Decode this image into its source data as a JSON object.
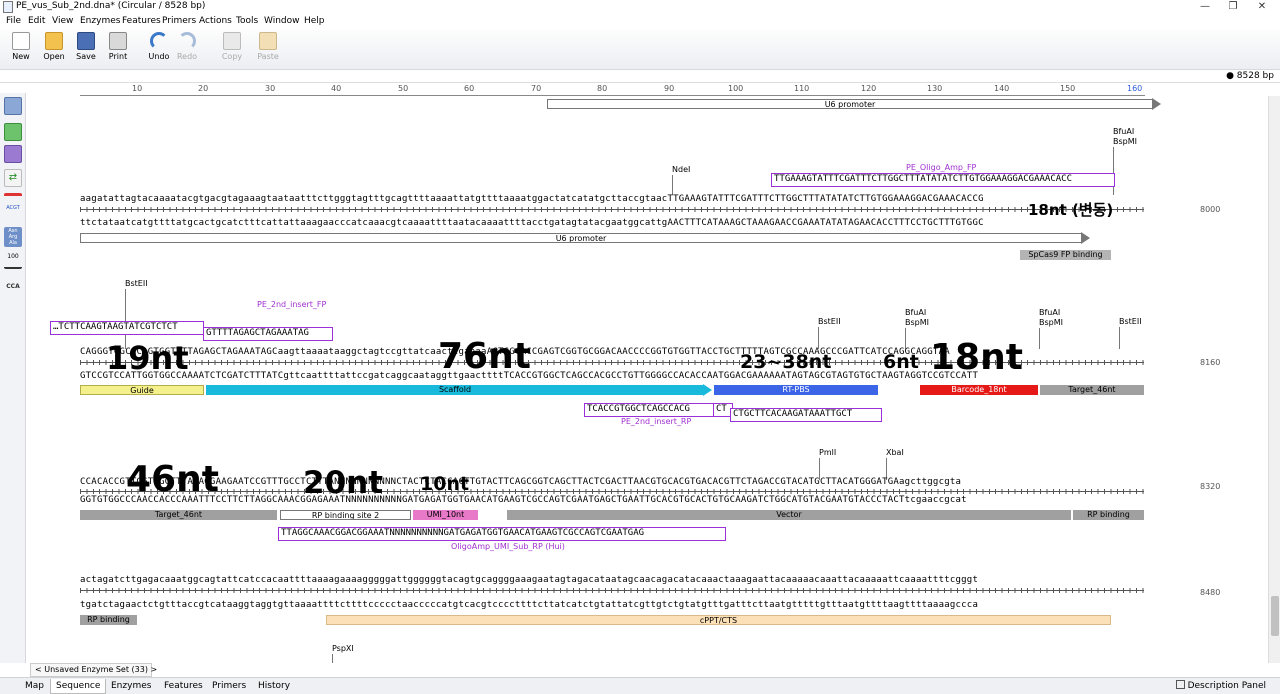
{
  "window": {
    "title": "PE_vus_Sub_2nd.dna*  (Circular / 8528 bp)",
    "minimize": "—",
    "restore": "❐",
    "close": "✕"
  },
  "menu": [
    "File",
    "Edit",
    "View",
    "Enzymes",
    "Features",
    "Primers",
    "Actions",
    "Tools",
    "Window",
    "Help"
  ],
  "toolbar": {
    "new": "New",
    "open": "Open",
    "save": "Save",
    "print": "Print",
    "undo": "Undo",
    "redo": "Redo",
    "copy": "Copy",
    "paste": "Paste"
  },
  "sequence_length_badge": "8528 bp",
  "ruler_labels": [
    "10",
    "20",
    "30",
    "40",
    "50",
    "60",
    "70",
    "80",
    "90",
    "100",
    "110",
    "120",
    "130",
    "140",
    "150",
    "160"
  ],
  "left_tools": {
    "acgt": "ACGT",
    "amino": "Asn Arg Ala",
    "hundred": "100",
    "cca": "CCA"
  },
  "rows": [
    {
      "top_seq": "aagatattagtacaaaatacgtgacgtagaaagtaataatttcttgggtagtttgcagttttaaaattatgttttaaaatggactatcatatgcttaccgtaacTTGAAAGTATTTCGATTTCTTGGCTTTATATATCTTGTGGAAAGGACGAAACACCG",
      "bottom_seq": "ttctataatcatgttttatgcactgcatctttcattattaaagaacccatcaaacgtcaaaattttaatacaaaattttacctgatagtatacgaatggcattgAACTTTCATAAAGCTAAAGAACCGAAATATATAGAACACCTTTCCTGCTTTGTGGC",
      "position": "8000"
    },
    {
      "top_seq": "CAGGGTGGCCCAGTGGTTTTAGAGCTAGAAATAGCaagttaaaataaggctagtccgttatcaacttgaaaaAGTGGCACCGAGTCGGTGCGGACAACCCCGGTGTGGTTACCTGCTTTTTAGTCGCCAAAGCCCGATTCATCCAGGCAGGTAA",
      "bottom_seq": "GTCCGTCCATTGGTGGCCAAAATCTCGATCTTTATCgttcaattttattccgatcaggcaataggttgaacttttTCACCGTGGCTCAGCCACGCCTGTTGGGGCCACACCAATGGACGAAAAAATAGTAGCGTAGTGTGCTAAGTAGGTCCGTCCATT",
      "position": "8160"
    },
    {
      "top_seq": "CCACACCGTTGGTGGGTTTAAAGGAAGAATCCGTTTGCCTCTTTANNNNNNNNNNNCTACTCTACCACTTGTACTTCAGCGGTCAGCTTACTCGACTTAACGTGCACGTGACACGTTCTAGACCGTACATGCTTACATGGGATGAagcttggcgta",
      "bottom_seq": "GGTGTGGCCCAACCACCCAAATTTCCTTCTTAGGCAAACGGAGAAATNNNNNNNNNNGATGAGATGGTGAACATGAAGTCGCCAGTCGAATGAGCTGAATTGCACGTGCACTGTGCAAGATCTGGCATGTACGAATGTACCCTACTtcgaaccgcat",
      "position": "8320"
    },
    {
      "top_seq": "actagatcttgagacaaatggcagtattcatccacaattttaaaagaaaagggggattggggggtacagtgcaggggaaagaatagtagacataatagcaacagacatacaaactaaagaattacaaaaacaaattacaaaaattcaaaattttcgggt",
      "bottom_seq": "tgatctagaactctgtttaccgtcataaggtaggtgttaaaattttcttttccccctaacccccatgtcacgtccccttttcttatcatctgtattatcgttgtctgtatgtttgatttcttaatgtttttgtttaatgttttaagttttaaaagccca",
      "position": "8480"
    }
  ],
  "features": [
    {
      "label": "U6 promoter",
      "color": "#ffffff"
    },
    {
      "label": "U6 promoter",
      "color": "#ffffff"
    },
    {
      "label": "SpCas9 FP binding",
      "color": "#b4b4b4"
    },
    {
      "label": "Guide",
      "color": "#f4f08c"
    },
    {
      "label": "Scaffold",
      "color": "#19b9dc"
    },
    {
      "label": "RT-PBS",
      "color": "#3c64e6"
    },
    {
      "label": "Barcode_18nt",
      "color": "#e61919"
    },
    {
      "label": "Target_46nt",
      "color": "#a0a0a0"
    },
    {
      "label": "Target_46nt",
      "color": "#a0a0a0"
    },
    {
      "label": "RP binding site 2",
      "color": "#ffffff"
    },
    {
      "label": "UMI_10nt",
      "color": "#e878c8"
    },
    {
      "label": "Vector",
      "color": "#a0a0a0"
    },
    {
      "label": "RP binding",
      "color": "#a0a0a0"
    },
    {
      "label": "RP binding",
      "color": "#a0a0a0"
    },
    {
      "label": "cPPT/CTS",
      "color": "#fbe0b8"
    }
  ],
  "enzymes": {
    "ndei": "NdeI",
    "bfuai_1": "BfuAI",
    "bspmi_1": "BspMI",
    "bsteii_1": "BstEII",
    "bsteii_2": "BstEII",
    "bfuai_2": "BfuAI",
    "bspmi_2": "BspMI",
    "bfuai_3": "BfuAI",
    "bspmi_3": "BspMI",
    "bsteii_3": "BstEII",
    "pmli": "PmlI",
    "xbai": "XbaI",
    "pspxi": "PspXI"
  },
  "primers": {
    "fp_oligo": {
      "name": "PE_Oligo_Amp_FP",
      "seq": "TTGAAAGTATTTCGATTTCTTGGCTTTATATATCTTGTGGAAAGGACGAAACACC"
    },
    "fp_insert_a": {
      "seq": "…TCTTCAAGTAAGTATCGTCTCT"
    },
    "fp_insert_b": {
      "name": "PE_2nd_insert_FP",
      "seq": "GTTTTAGAGCTAGAAATAG"
    },
    "rp_insert_a": {
      "seq": "TCACCGTGGCTCAGCCACG"
    },
    "rp_insert_mid": {
      "seq": "CT"
    },
    "rp_insert_b": {
      "name": "PE_2nd_insert_RP",
      "seq": "CTGCTTCACAAGATAAATTGCT"
    },
    "rp_oligo": {
      "name": "OligoAmp_UMI_Sub_RP (Hui)",
      "seq": "TTAGGCAAACGGACGGAAATNNNNNNNNNNGATGAGATGGTGAACATGAAGTCGCCAGTCGAATGAG"
    }
  },
  "annotations": {
    "a18_korean": "18nt (변동)",
    "a19": "19nt",
    "a76": "76nt",
    "a23_38": "23~38nt",
    "a6": "6nt",
    "a18": "18nt",
    "a46": "46nt",
    "a20": "20nt",
    "a10": "10nt"
  },
  "enzyme_set": "< Unsaved Enzyme Set (33) >",
  "tabs": [
    "Map",
    "Sequence",
    "Enzymes",
    "Features",
    "Primers",
    "History"
  ],
  "active_tab": "Sequence",
  "description_panel": "Description Panel"
}
